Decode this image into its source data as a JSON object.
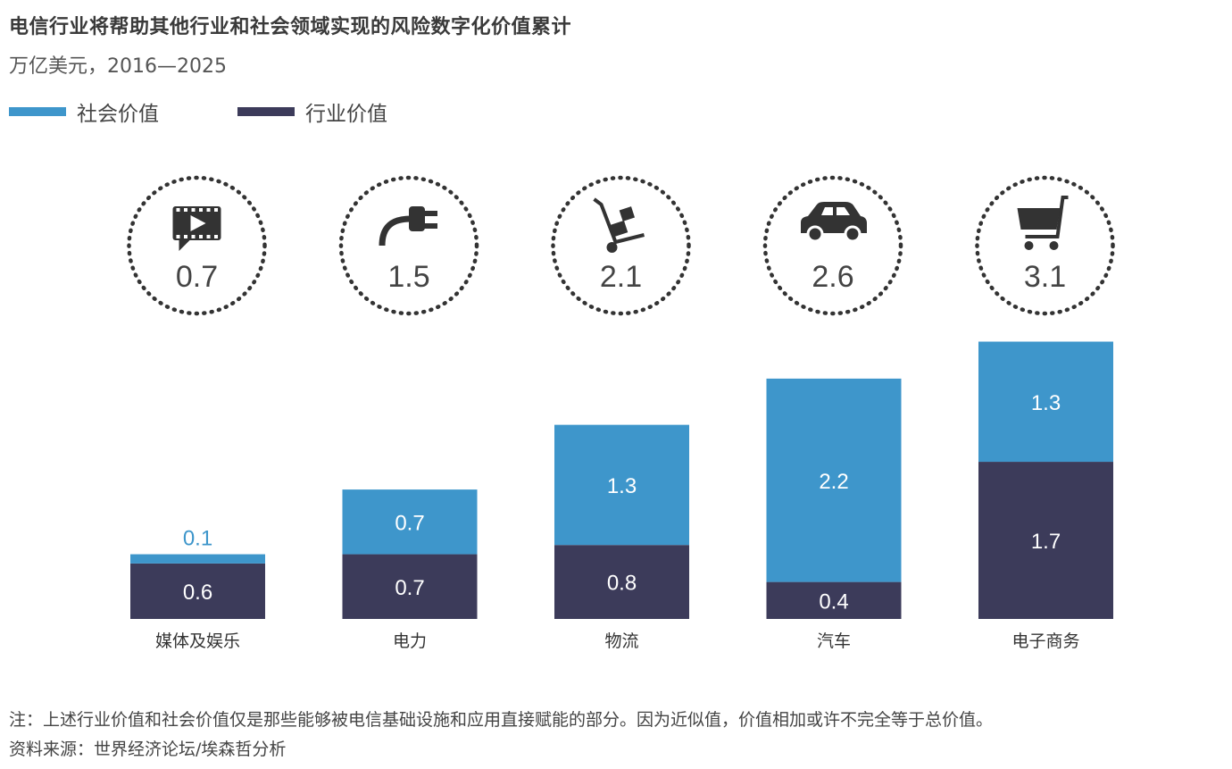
{
  "title": "电信行业将帮助其他行业和社会领域实现的风险数字化价值累计",
  "subtitle": "万亿美元，2016—2025",
  "legend": [
    {
      "label": "社会价值",
      "color": "#3e96cb"
    },
    {
      "label": "行业价值",
      "color": "#3c3b5a"
    }
  ],
  "notes": {
    "note": "注：上述行业价值和社会价值仅是那些能够被电信基础设施和应用直接赋能的部分。因为近似值，价值相加或许不完全等于总价值。",
    "source": "资料来源：世界经济论坛/埃森哲分析"
  },
  "chart_data": {
    "type": "bar",
    "stacked": true,
    "categories": [
      "媒体及娱乐",
      "电力",
      "物流",
      "汽车",
      "电子商务"
    ],
    "series": [
      {
        "name": "行业价值",
        "color": "#3c3b5a",
        "values": [
          0.6,
          0.7,
          0.8,
          0.4,
          1.7
        ],
        "labels": [
          "0.6",
          "0.7",
          "0.8",
          "0.4",
          "1.7"
        ]
      },
      {
        "name": "社会价值",
        "color": "#3e96cb",
        "values": [
          0.1,
          0.7,
          1.3,
          2.2,
          1.3
        ],
        "labels": [
          "0.1",
          "0.7",
          "1.3",
          "2.2",
          "1.3"
        ]
      }
    ],
    "totals": [
      "0.7",
      "1.5",
      "2.1",
      "2.6",
      "3.1"
    ],
    "icons": [
      "video-icon",
      "plug-icon",
      "hand-truck-icon",
      "car-icon",
      "shopping-cart-icon"
    ],
    "ylim": [
      0,
      3.1
    ],
    "grid": false,
    "legend_position": "top-left"
  }
}
